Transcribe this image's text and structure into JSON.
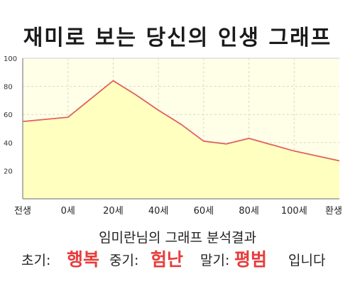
{
  "title": "재미로 보는 당신의 인생 그래프",
  "chart_data": {
    "type": "area",
    "title": "재미로 보는 당신의 인생 그래프",
    "xlabel": "",
    "ylabel": "",
    "ylim": [
      0,
      100
    ],
    "yticks": [
      20,
      40,
      60,
      80,
      100
    ],
    "x_ticks": [
      {
        "pos": 0,
        "label": "전생"
      },
      {
        "pos": 1,
        "label": "0세"
      },
      {
        "pos": 2,
        "label": "20세"
      },
      {
        "pos": 3,
        "label": "40세"
      },
      {
        "pos": 4,
        "label": "60세"
      },
      {
        "pos": 5,
        "label": "80세"
      },
      {
        "pos": 6,
        "label": "100세"
      },
      {
        "pos": 7,
        "label": "환생"
      }
    ],
    "x": [
      0,
      1,
      2,
      2.5,
      3,
      3.5,
      4,
      4.5,
      5,
      6,
      7
    ],
    "values": [
      55,
      58,
      84,
      74,
      63,
      53,
      41,
      39,
      43,
      34,
      27
    ],
    "grid": true,
    "colors": {
      "line": "#e06060",
      "fill": "#ffffc0",
      "plot_bg": "#ffffe8",
      "grid": "#d8d8c8",
      "axis": "#9a9a9a"
    }
  },
  "subtitle": "임미란님의 그래프 분석결과",
  "result": {
    "early_label": "초기:",
    "early_value": "행복",
    "mid_label": "중기:",
    "mid_value": "험난",
    "late_label": "말기:",
    "late_value": "평범",
    "suffix": "입니다",
    "highlight_color": "#e83c3c"
  }
}
